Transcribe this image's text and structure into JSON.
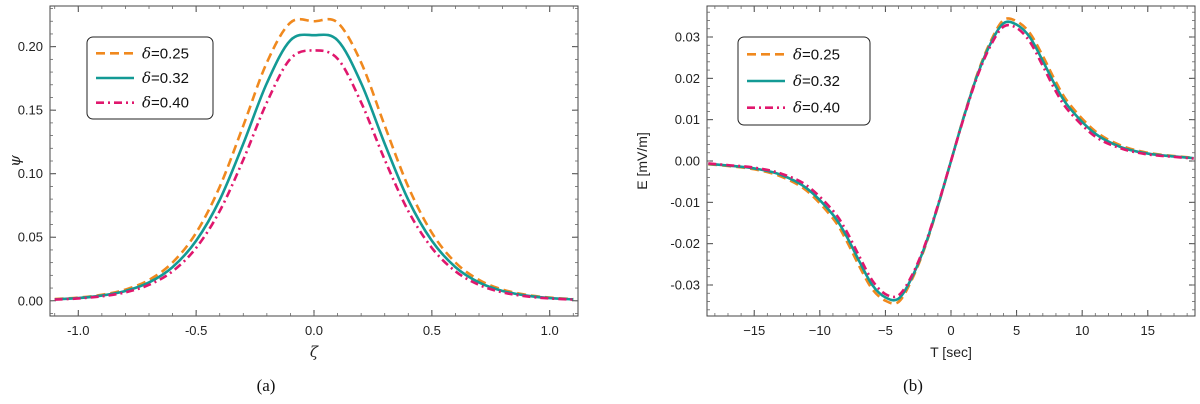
{
  "chart_data": [
    {
      "type": "line",
      "panel_caption": "(a)",
      "xlabel": "ζ",
      "ylabel": "ψ",
      "xlim": [
        -1.12,
        1.12
      ],
      "ylim": [
        -0.012,
        0.232
      ],
      "xticks": [
        -1.0,
        -0.5,
        0.0,
        0.5,
        1.0
      ],
      "xtick_labels": [
        "-1.0",
        "-0.5",
        "0.0",
        "0.5",
        "1.0"
      ],
      "yticks": [
        0.0,
        0.05,
        0.1,
        0.15,
        0.2
      ],
      "ytick_labels": [
        "0.00",
        "0.05",
        "0.10",
        "0.15",
        "0.20"
      ],
      "legend": "top-left",
      "grid": false,
      "series": [
        {
          "name": "δ=0.25",
          "label_sym": "δ",
          "label_val": "=0.25",
          "color": "#f0891e",
          "dash": "dashed",
          "x": [
            -1.1,
            -1.0,
            -0.9,
            -0.8,
            -0.7,
            -0.6,
            -0.5,
            -0.4,
            -0.3,
            -0.2,
            -0.1,
            0.0,
            0.1,
            0.2,
            0.3,
            0.4,
            0.5,
            0.6,
            0.7,
            0.8,
            0.9,
            1.0,
            1.1
          ],
          "values": [
            0.0013,
            0.0025,
            0.0047,
            0.0088,
            0.0164,
            0.0301,
            0.0535,
            0.0897,
            0.1378,
            0.1875,
            0.2189,
            0.22,
            0.2189,
            0.1875,
            0.1378,
            0.0897,
            0.0535,
            0.0301,
            0.0164,
            0.0088,
            0.0047,
            0.0025,
            0.0013
          ]
        },
        {
          "name": "δ=0.32",
          "label_sym": "δ",
          "label_val": "=0.32",
          "color": "#139a95",
          "dash": "solid",
          "x": [
            -1.1,
            -1.0,
            -0.9,
            -0.8,
            -0.7,
            -0.6,
            -0.5,
            -0.4,
            -0.3,
            -0.2,
            -0.1,
            0.0,
            0.1,
            0.2,
            0.3,
            0.4,
            0.5,
            0.6,
            0.7,
            0.8,
            0.9,
            1.0,
            1.1
          ],
          "values": [
            0.0011,
            0.0021,
            0.0041,
            0.0077,
            0.0144,
            0.0265,
            0.0472,
            0.0794,
            0.1236,
            0.1713,
            0.205,
            0.209,
            0.205,
            0.1713,
            0.1236,
            0.0794,
            0.0472,
            0.0265,
            0.0144,
            0.0077,
            0.0041,
            0.0021,
            0.0011
          ]
        },
        {
          "name": "δ=0.40",
          "label_sym": "δ",
          "label_val": "=0.40",
          "color": "#e0176d",
          "dash": "dashdot",
          "x": [
            -1.1,
            -1.0,
            -0.9,
            -0.8,
            -0.7,
            -0.6,
            -0.5,
            -0.4,
            -0.3,
            -0.2,
            -0.1,
            0.0,
            0.1,
            0.2,
            0.3,
            0.4,
            0.5,
            0.6,
            0.7,
            0.8,
            0.9,
            1.0,
            1.1
          ],
          "values": [
            0.0009,
            0.0018,
            0.0035,
            0.0066,
            0.0125,
            0.0232,
            0.0416,
            0.0706,
            0.111,
            0.1561,
            0.1905,
            0.197,
            0.1905,
            0.1561,
            0.111,
            0.0706,
            0.0416,
            0.0232,
            0.0125,
            0.0066,
            0.0035,
            0.0018,
            0.0009
          ]
        }
      ]
    },
    {
      "type": "line",
      "panel_caption": "(b)",
      "xlabel": "T [sec]",
      "ylabel": "E [mV/m]",
      "xlim": [
        -18.6,
        18.6
      ],
      "ylim": [
        -0.0375,
        0.0375
      ],
      "xticks": [
        -15,
        -10,
        -5,
        0,
        5,
        10,
        15
      ],
      "xtick_labels": [
        "−15",
        "−10",
        "−5",
        "0",
        "5",
        "10",
        "15"
      ],
      "yticks": [
        -0.03,
        -0.02,
        -0.01,
        0.0,
        0.01,
        0.02,
        0.03
      ],
      "ytick_labels": [
        "-0.03",
        "-0.02",
        "-0.01",
        "0.00",
        "0.01",
        "0.02",
        "0.03"
      ],
      "legend": "top-left",
      "grid": false,
      "series": [
        {
          "name": "δ=0.25",
          "label_sym": "δ",
          "label_val": "=0.25",
          "color": "#f0891e",
          "dash": "dashed",
          "x": [
            -18.5,
            -17,
            -15,
            -13,
            -11,
            -9,
            -8,
            -7,
            -6,
            -5,
            -4,
            -3,
            -2,
            -1,
            0,
            1,
            2,
            3,
            4,
            5,
            6,
            7,
            8,
            9,
            11,
            13,
            15,
            17,
            18.5
          ],
          "values": [
            -0.0008,
            -0.0012,
            -0.002,
            -0.0037,
            -0.0072,
            -0.0139,
            -0.0191,
            -0.0254,
            -0.031,
            -0.0338,
            -0.0341,
            -0.0288,
            -0.021,
            -0.011,
            0.0,
            0.011,
            0.021,
            0.0288,
            0.0341,
            0.0338,
            0.031,
            0.0254,
            0.0191,
            0.0139,
            0.0072,
            0.0037,
            0.002,
            0.0012,
            0.0008
          ]
        },
        {
          "name": "δ=0.32",
          "label_sym": "δ",
          "label_val": "=0.32",
          "color": "#139a95",
          "dash": "solid",
          "x": [
            -18.5,
            -17,
            -15,
            -13,
            -11,
            -9,
            -8,
            -7,
            -6,
            -5,
            -4,
            -3,
            -2,
            -1,
            0,
            1,
            2,
            3,
            4,
            5,
            6,
            7,
            8,
            9,
            11,
            13,
            15,
            17,
            18.5
          ],
          "values": [
            -0.0007,
            -0.0011,
            -0.0018,
            -0.0033,
            -0.0066,
            -0.013,
            -0.018,
            -0.0242,
            -0.03,
            -0.033,
            -0.0333,
            -0.0283,
            -0.0207,
            -0.0109,
            0.0,
            0.0109,
            0.0207,
            0.0283,
            0.0333,
            0.033,
            0.03,
            0.0242,
            0.018,
            0.013,
            0.0066,
            0.0033,
            0.0018,
            0.0011,
            0.0007
          ]
        },
        {
          "name": "δ=0.40",
          "label_sym": "δ",
          "label_val": "=0.40",
          "color": "#e0176d",
          "dash": "dashdot",
          "x": [
            -18.5,
            -17,
            -15,
            -13,
            -11,
            -9,
            -8,
            -7,
            -6,
            -5,
            -4,
            -3,
            -2,
            -1,
            0,
            1,
            2,
            3,
            4,
            5,
            6,
            7,
            8,
            9,
            11,
            13,
            15,
            17,
            18.5
          ],
          "values": [
            -0.0006,
            -0.001,
            -0.0016,
            -0.003,
            -0.0059,
            -0.012,
            -0.0168,
            -0.023,
            -0.0289,
            -0.0322,
            -0.0325,
            -0.0278,
            -0.0204,
            -0.0107,
            0.0,
            0.0107,
            0.0204,
            0.0278,
            0.0325,
            0.0322,
            0.0289,
            0.023,
            0.0168,
            0.012,
            0.0059,
            0.003,
            0.0016,
            0.001,
            0.0006
          ]
        }
      ]
    }
  ]
}
